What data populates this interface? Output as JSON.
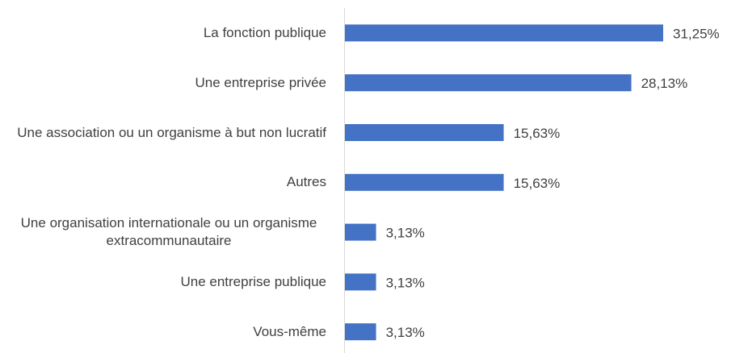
{
  "chart_data": {
    "type": "bar",
    "orientation": "horizontal",
    "categories": [
      "La fonction publique",
      "Une entreprise privée",
      "Une association ou un organisme à but non lucratif",
      "Autres",
      "Une organisation internationale ou un organisme extracommunautaire",
      "Une entreprise publique",
      "Vous-même"
    ],
    "values": [
      31.25,
      28.13,
      15.63,
      15.63,
      3.13,
      3.13,
      3.13
    ],
    "value_labels": [
      "31,25%",
      "28,13%",
      "15,63%",
      "15,63%",
      "3,13%",
      "3,13%",
      "3,13%"
    ],
    "color": "#4472c4"
  }
}
